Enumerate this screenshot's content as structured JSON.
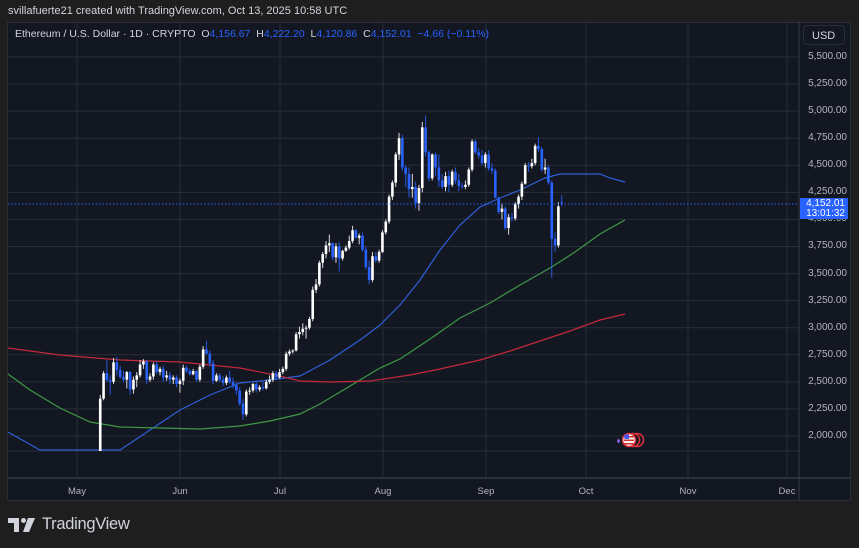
{
  "credit": "svillafuerte21 created with TradingView.com, Oct 13, 2025 10:58 UTC",
  "legend": {
    "symbol": "Ethereum / U.S. Dollar · 1D · CRYPTO",
    "open_label": "O",
    "open": "4,156.67",
    "high_label": "H",
    "high": "4,222.20",
    "low_label": "L",
    "low": "4,120.86",
    "close_label": "C",
    "close": "4,152.01",
    "change": "−4.66 (−0.11%)"
  },
  "currency_button": "USD",
  "last_price": {
    "price": "4,152.01",
    "countdown": "13:01:32"
  },
  "colors": {
    "background": "#131722",
    "grid": "#2a2e39",
    "up": "#ffffff",
    "down": "#2962ff",
    "ma_fast": "#2f5fd6",
    "ma_mid": "#3d9a47",
    "ma_slow": "#c2293c",
    "accent": "#2962ff"
  },
  "brand": {
    "name": "TradingView"
  },
  "chart_data": {
    "type": "candlestick",
    "title": "Ethereum / U.S. Dollar · 1D · CRYPTO",
    "ylabel": "USD",
    "ylim": [
      1850,
      5750
    ],
    "y_ticks": [
      "5,500.00",
      "5,250.00",
      "5,000.00",
      "4,750.00",
      "4,500.00",
      "4,250.00",
      "4,000.00",
      "3,750.00",
      "3,500.00",
      "3,250.00",
      "3,000.00",
      "2,750.00",
      "2,500.00",
      "2,250.00",
      "2,000.00"
    ],
    "x_ticks": [
      "May",
      "Jun",
      "Jul",
      "Aug",
      "Sep",
      "Oct",
      "Nov",
      "Dec"
    ],
    "start_date": "2025-05-08",
    "ohlc": [
      [
        1810,
        2380,
        1800,
        2345
      ],
      [
        2345,
        2600,
        2330,
        2580
      ],
      [
        2580,
        2700,
        2500,
        2515
      ],
      [
        2515,
        2560,
        2380,
        2500
      ],
      [
        2500,
        2720,
        2480,
        2680
      ],
      [
        2680,
        2730,
        2560,
        2610
      ],
      [
        2610,
        2650,
        2530,
        2545
      ],
      [
        2545,
        2600,
        2500,
        2520
      ],
      [
        2520,
        2600,
        2440,
        2590
      ],
      [
        2590,
        2600,
        2380,
        2430
      ],
      [
        2430,
        2550,
        2390,
        2520
      ],
      [
        2520,
        2590,
        2450,
        2560
      ],
      [
        2560,
        2700,
        2540,
        2660
      ],
      [
        2660,
        2710,
        2620,
        2690
      ],
      [
        2690,
        2700,
        2480,
        2520
      ],
      [
        2520,
        2580,
        2500,
        2550
      ],
      [
        2550,
        2680,
        2520,
        2660
      ],
      [
        2660,
        2690,
        2570,
        2590
      ],
      [
        2590,
        2640,
        2560,
        2620
      ],
      [
        2620,
        2650,
        2500,
        2540
      ],
      [
        2540,
        2600,
        2510,
        2560
      ],
      [
        2560,
        2590,
        2480,
        2520
      ],
      [
        2520,
        2560,
        2480,
        2540
      ],
      [
        2540,
        2560,
        2450,
        2480
      ],
      [
        2480,
        2530,
        2400,
        2510
      ],
      [
        2510,
        2660,
        2470,
        2630
      ],
      [
        2630,
        2650,
        2580,
        2600
      ],
      [
        2600,
        2620,
        2560,
        2570
      ],
      [
        2570,
        2620,
        2560,
        2600
      ],
      [
        2600,
        2610,
        2500,
        2520
      ],
      [
        2520,
        2660,
        2500,
        2640
      ],
      [
        2640,
        2830,
        2620,
        2800
      ],
      [
        2800,
        2880,
        2750,
        2760
      ],
      [
        2760,
        2790,
        2640,
        2670
      ],
      [
        2670,
        2700,
        2480,
        2510
      ],
      [
        2510,
        2580,
        2500,
        2560
      ],
      [
        2560,
        2580,
        2500,
        2520
      ],
      [
        2520,
        2550,
        2460,
        2490
      ],
      [
        2490,
        2560,
        2470,
        2540
      ],
      [
        2540,
        2600,
        2480,
        2500
      ],
      [
        2500,
        2540,
        2440,
        2470
      ],
      [
        2470,
        2500,
        2380,
        2420
      ],
      [
        2420,
        2450,
        2280,
        2300
      ],
      [
        2300,
        2340,
        2150,
        2200
      ],
      [
        2200,
        2430,
        2180,
        2410
      ],
      [
        2410,
        2450,
        2380,
        2420
      ],
      [
        2420,
        2490,
        2400,
        2480
      ],
      [
        2480,
        2500,
        2400,
        2430
      ],
      [
        2430,
        2470,
        2410,
        2450
      ],
      [
        2450,
        2500,
        2420,
        2440
      ],
      [
        2440,
        2520,
        2430,
        2500
      ],
      [
        2500,
        2560,
        2480,
        2520
      ],
      [
        2520,
        2600,
        2500,
        2580
      ],
      [
        2580,
        2600,
        2520,
        2540
      ],
      [
        2540,
        2620,
        2530,
        2590
      ],
      [
        2590,
        2640,
        2570,
        2620
      ],
      [
        2620,
        2780,
        2600,
        2760
      ],
      [
        2760,
        2800,
        2740,
        2780
      ],
      [
        2780,
        2800,
        2760,
        2790
      ],
      [
        2790,
        2960,
        2780,
        2940
      ],
      [
        2940,
        3010,
        2900,
        2960
      ],
      [
        2960,
        3040,
        2930,
        2990
      ],
      [
        2990,
        3020,
        2900,
        3000
      ],
      [
        3000,
        3100,
        2980,
        3080
      ],
      [
        3080,
        3380,
        3060,
        3350
      ],
      [
        3350,
        3450,
        3320,
        3400
      ],
      [
        3400,
        3620,
        3380,
        3600
      ],
      [
        3600,
        3700,
        3550,
        3680
      ],
      [
        3680,
        3800,
        3640,
        3760
      ],
      [
        3760,
        3860,
        3700,
        3780
      ],
      [
        3780,
        3790,
        3620,
        3650
      ],
      [
        3650,
        3780,
        3600,
        3750
      ],
      [
        3750,
        3790,
        3520,
        3640
      ],
      [
        3640,
        3720,
        3620,
        3710
      ],
      [
        3710,
        3760,
        3700,
        3740
      ],
      [
        3740,
        3850,
        3720,
        3800
      ],
      [
        3800,
        3940,
        3780,
        3900
      ],
      [
        3900,
        3910,
        3820,
        3830
      ],
      [
        3830,
        3870,
        3770,
        3850
      ],
      [
        3850,
        3880,
        3700,
        3720
      ],
      [
        3720,
        3750,
        3540,
        3560
      ],
      [
        3560,
        3620,
        3400,
        3440
      ],
      [
        3440,
        3700,
        3420,
        3660
      ],
      [
        3660,
        3700,
        3600,
        3620
      ],
      [
        3620,
        3720,
        3600,
        3700
      ],
      [
        3700,
        3900,
        3690,
        3880
      ],
      [
        3880,
        4000,
        3860,
        3980
      ],
      [
        3980,
        4230,
        3960,
        4210
      ],
      [
        4210,
        4360,
        4180,
        4340
      ],
      [
        4340,
        4620,
        4300,
        4600
      ],
      [
        4600,
        4800,
        4550,
        4750
      ],
      [
        4750,
        4780,
        4450,
        4480
      ],
      [
        4480,
        4500,
        4300,
        4420
      ],
      [
        4420,
        4480,
        4200,
        4280
      ],
      [
        4280,
        4420,
        4200,
        4300
      ],
      [
        4300,
        4350,
        4100,
        4150
      ],
      [
        4150,
        4320,
        4080,
        4290
      ],
      [
        4290,
        4900,
        4250,
        4850
      ],
      [
        4850,
        4960,
        4580,
        4620
      ],
      [
        4620,
        4640,
        4350,
        4380
      ],
      [
        4380,
        4610,
        4360,
        4600
      ],
      [
        4600,
        4620,
        4400,
        4480
      ],
      [
        4480,
        4600,
        4300,
        4360
      ],
      [
        4360,
        4420,
        4280,
        4300
      ],
      [
        4300,
        4440,
        4260,
        4400
      ],
      [
        4400,
        4450,
        4250,
        4320
      ],
      [
        4320,
        4460,
        4300,
        4440
      ],
      [
        4440,
        4480,
        4330,
        4360
      ],
      [
        4360,
        4420,
        4260,
        4310
      ],
      [
        4310,
        4340,
        4280,
        4300
      ],
      [
        4300,
        4360,
        4280,
        4320
      ],
      [
        4320,
        4480,
        4300,
        4460
      ],
      [
        4460,
        4740,
        4440,
        4720
      ],
      [
        4720,
        4740,
        4600,
        4620
      ],
      [
        4620,
        4660,
        4560,
        4590
      ],
      [
        4590,
        4640,
        4500,
        4520
      ],
      [
        4520,
        4620,
        4480,
        4600
      ],
      [
        4600,
        4640,
        4450,
        4470
      ],
      [
        4470,
        4520,
        4420,
        4450
      ],
      [
        4450,
        4470,
        4250,
        4200
      ],
      [
        4200,
        4210,
        4050,
        4070
      ],
      [
        4070,
        4150,
        4000,
        4100
      ],
      [
        4100,
        4120,
        3900,
        3920
      ],
      [
        3920,
        4050,
        3860,
        4020
      ],
      [
        4020,
        4060,
        3980,
        4010
      ],
      [
        4010,
        4160,
        3990,
        4140
      ],
      [
        4140,
        4230,
        4100,
        4210
      ],
      [
        4210,
        4350,
        4180,
        4330
      ],
      [
        4330,
        4520,
        4320,
        4500
      ],
      [
        4500,
        4530,
        4440,
        4490
      ],
      [
        4490,
        4560,
        4470,
        4520
      ],
      [
        4520,
        4700,
        4500,
        4680
      ],
      [
        4680,
        4760,
        4620,
        4650
      ],
      [
        4650,
        4670,
        4440,
        4460
      ],
      [
        4460,
        4560,
        4420,
        4480
      ],
      [
        4480,
        4500,
        4320,
        4340
      ],
      [
        4340,
        4360,
        3460,
        3820
      ],
      [
        3820,
        3880,
        3700,
        3760
      ],
      [
        3760,
        4160,
        3740,
        4120
      ],
      [
        4156.67,
        4222.2,
        4120.86,
        4152.01
      ]
    ],
    "moving_averages": [
      {
        "name": "MA fast (~50)",
        "color": "#2f5fd6",
        "points": [
          [
            8,
            432
          ],
          [
            40,
            450
          ],
          [
            120,
            450
          ],
          [
            150,
            430
          ],
          [
            180,
            410
          ],
          [
            210,
            395
          ],
          [
            240,
            383
          ],
          [
            270,
            380
          ],
          [
            300,
            376
          ],
          [
            330,
            360
          ],
          [
            360,
            340
          ],
          [
            380,
            325
          ],
          [
            400,
            305
          ],
          [
            420,
            280
          ],
          [
            440,
            250
          ],
          [
            460,
            225
          ],
          [
            480,
            207
          ],
          [
            500,
            198
          ],
          [
            520,
            190
          ],
          [
            545,
            178
          ],
          [
            560,
            174
          ],
          [
            580,
            174
          ],
          [
            600,
            174
          ],
          [
            610,
            178
          ],
          [
            625,
            182
          ]
        ]
      },
      {
        "name": "MA mid (~100)",
        "color": "#3d9a47",
        "points": [
          [
            8,
            374
          ],
          [
            30,
            390
          ],
          [
            60,
            408
          ],
          [
            90,
            422
          ],
          [
            120,
            427
          ],
          [
            160,
            428
          ],
          [
            200,
            429
          ],
          [
            240,
            426
          ],
          [
            270,
            421
          ],
          [
            300,
            414
          ],
          [
            320,
            404
          ],
          [
            350,
            386
          ],
          [
            380,
            368
          ],
          [
            400,
            359
          ],
          [
            430,
            339
          ],
          [
            460,
            318
          ],
          [
            490,
            303
          ],
          [
            520,
            285
          ],
          [
            550,
            268
          ],
          [
            575,
            252
          ],
          [
            600,
            234
          ],
          [
            625,
            220
          ]
        ]
      },
      {
        "name": "MA slow (~200)",
        "color": "#c2293c",
        "points": [
          [
            8,
            348
          ],
          [
            60,
            355
          ],
          [
            120,
            360
          ],
          [
            180,
            362
          ],
          [
            240,
            368
          ],
          [
            280,
            376
          ],
          [
            300,
            381
          ],
          [
            330,
            382
          ],
          [
            370,
            381
          ],
          [
            410,
            375
          ],
          [
            440,
            369
          ],
          [
            480,
            360
          ],
          [
            510,
            351
          ],
          [
            540,
            341
          ],
          [
            570,
            331
          ],
          [
            600,
            320
          ],
          [
            625,
            314
          ]
        ]
      }
    ]
  }
}
